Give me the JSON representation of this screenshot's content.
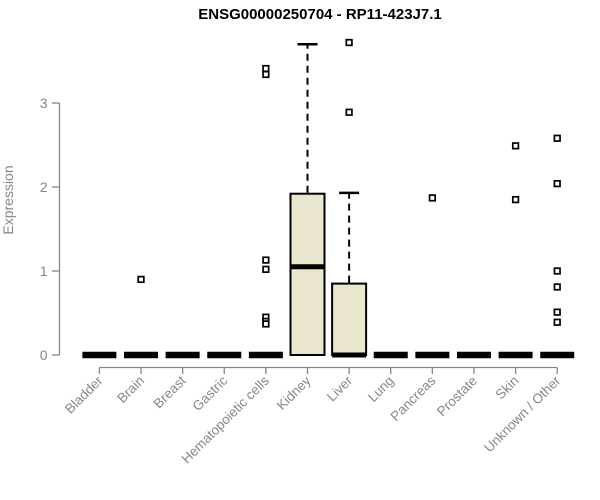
{
  "chart_data": {
    "type": "boxplot",
    "title": "ENSG00000250704 - RP11-423J7.1",
    "ylabel": "Expression",
    "xlabel": "",
    "yticks": [
      0,
      1,
      2,
      3
    ],
    "ylim": [
      0,
      3.82
    ],
    "grid": false,
    "legend": "none",
    "categories": [
      "Bladder",
      "Brain",
      "Breast",
      "Gastric",
      "Hematopoietic cells",
      "Kidney",
      "Liver",
      "Lung",
      "Pancreas",
      "Prostate",
      "Skin",
      "Unknown / Other"
    ],
    "boxes": [
      {
        "category": "Bladder",
        "min": 0,
        "q1": 0,
        "median": 0,
        "q3": 0,
        "max": 0,
        "outliers": []
      },
      {
        "category": "Brain",
        "min": 0,
        "q1": 0,
        "median": 0,
        "q3": 0,
        "max": 0,
        "outliers": [
          0.9
        ]
      },
      {
        "category": "Breast",
        "min": 0,
        "q1": 0,
        "median": 0,
        "q3": 0,
        "max": 0,
        "outliers": []
      },
      {
        "category": "Gastric",
        "min": 0,
        "q1": 0,
        "median": 0,
        "q3": 0,
        "max": 0,
        "outliers": []
      },
      {
        "category": "Hematopoietic cells",
        "min": 0,
        "q1": 0,
        "median": 0,
        "q3": 0,
        "max": 0,
        "outliers": [
          3.41,
          3.34,
          1.13,
          1.02,
          0.45,
          0.4,
          0.37
        ]
      },
      {
        "category": "Kidney",
        "min": 0,
        "q1": 0,
        "median": 1.05,
        "q3": 1.92,
        "max": 3.7,
        "outliers": []
      },
      {
        "category": "Liver",
        "min": 0,
        "q1": 0,
        "median": 0,
        "q3": 0.85,
        "max": 1.93,
        "outliers": [
          3.72,
          2.89
        ]
      },
      {
        "category": "Lung",
        "min": 0,
        "q1": 0,
        "median": 0,
        "q3": 0,
        "max": 0,
        "outliers": []
      },
      {
        "category": "Pancreas",
        "min": 0,
        "q1": 0,
        "median": 0,
        "q3": 0,
        "max": 0,
        "outliers": [
          1.87
        ]
      },
      {
        "category": "Prostate",
        "min": 0,
        "q1": 0,
        "median": 0,
        "q3": 0,
        "max": 0,
        "outliers": []
      },
      {
        "category": "Skin",
        "min": 0,
        "q1": 0,
        "median": 0,
        "q3": 0,
        "max": 0,
        "outliers": [
          2.49,
          1.85
        ]
      },
      {
        "category": "Unknown / Other",
        "min": 0,
        "q1": 0,
        "median": 0,
        "q3": 0,
        "max": 0,
        "outliers": [
          2.58,
          2.04,
          1.0,
          0.81,
          0.51,
          0.39
        ]
      }
    ],
    "style": {
      "box_fill": "#EBE6CE",
      "box_stroke": "#000000",
      "outlier_fill": "#ffffff",
      "axis_color": "#878787",
      "label_color": "#878787",
      "title_color": "#000000",
      "background": "#ffffff"
    }
  }
}
